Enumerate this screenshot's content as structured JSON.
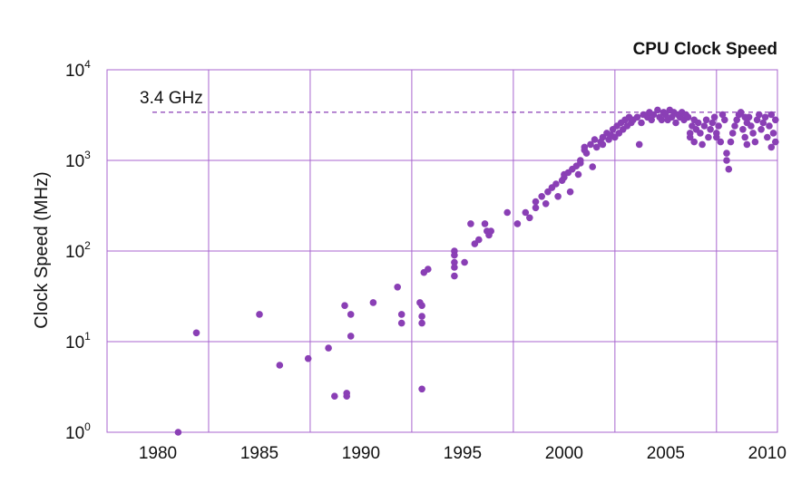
{
  "chart_data": {
    "type": "scatter",
    "title": "CPU Clock Speed",
    "xlabel": "",
    "ylabel": "Clock Speed (MHz)",
    "y_scale": "log",
    "xlim": [
      1977.5,
      2010.5
    ],
    "ylim": [
      1,
      10000
    ],
    "x_ticks": [
      1980,
      1985,
      1990,
      1995,
      2000,
      2005,
      2010
    ],
    "x_tick_labels": [
      "1980",
      "1985",
      "1990",
      "1995",
      "2000",
      "2005",
      "2010"
    ],
    "y_ticks": [
      {
        "value": 1,
        "base": "10",
        "exp": "0"
      },
      {
        "value": 10,
        "base": "10",
        "exp": "1"
      },
      {
        "value": 100,
        "base": "10",
        "exp": "2"
      },
      {
        "value": 1000,
        "base": "10",
        "exp": "3"
      },
      {
        "value": 10000,
        "base": "10",
        "exp": "4"
      }
    ],
    "grid": true,
    "reference_line": {
      "value": 3400,
      "label": "3.4 GHz",
      "style": "dashed"
    },
    "colors": {
      "points": "#8a3fb5",
      "grid": "#a866cf"
    },
    "points": [
      [
        1981.0,
        1.0
      ],
      [
        1981.9,
        12.5
      ],
      [
        1985.0,
        20
      ],
      [
        1986.0,
        5.5
      ],
      [
        1987.4,
        6.5
      ],
      [
        1988.4,
        8.5
      ],
      [
        1988.7,
        2.5
      ],
      [
        1989.2,
        25
      ],
      [
        1989.3,
        2.5
      ],
      [
        1989.3,
        2.7
      ],
      [
        1989.5,
        20
      ],
      [
        1989.5,
        11.5
      ],
      [
        1990.6,
        27
      ],
      [
        1991.8,
        40
      ],
      [
        1992.0,
        20
      ],
      [
        1992.0,
        16
      ],
      [
        1992.9,
        27
      ],
      [
        1993.0,
        25
      ],
      [
        1993.0,
        19
      ],
      [
        1993.0,
        16
      ],
      [
        1993.0,
        3.0
      ],
      [
        1993.1,
        58
      ],
      [
        1993.3,
        63
      ],
      [
        1994.6,
        100
      ],
      [
        1994.6,
        90
      ],
      [
        1994.6,
        75
      ],
      [
        1994.6,
        66
      ],
      [
        1994.6,
        53
      ],
      [
        1995.1,
        75
      ],
      [
        1995.4,
        200
      ],
      [
        1995.6,
        120
      ],
      [
        1995.8,
        133
      ],
      [
        1996.1,
        200
      ],
      [
        1996.2,
        166
      ],
      [
        1996.3,
        150
      ],
      [
        1996.4,
        166
      ],
      [
        1997.2,
        266
      ],
      [
        1997.7,
        200
      ],
      [
        1998.1,
        266
      ],
      [
        1998.3,
        233
      ],
      [
        1998.6,
        300
      ],
      [
        1998.6,
        350
      ],
      [
        1998.9,
        400
      ],
      [
        1999.1,
        333
      ],
      [
        1999.2,
        450
      ],
      [
        1999.4,
        500
      ],
      [
        1999.6,
        550
      ],
      [
        1999.7,
        400
      ],
      [
        1999.9,
        600
      ],
      [
        2000.0,
        700
      ],
      [
        2000.0,
        650
      ],
      [
        2000.2,
        733
      ],
      [
        2000.3,
        450
      ],
      [
        2000.4,
        800
      ],
      [
        2000.6,
        866
      ],
      [
        2000.7,
        700
      ],
      [
        2000.8,
        933
      ],
      [
        2000.8,
        1000
      ],
      [
        2001.0,
        1400
      ],
      [
        2001.0,
        1300
      ],
      [
        2001.1,
        1200
      ],
      [
        2001.3,
        1500
      ],
      [
        2001.4,
        850
      ],
      [
        2001.5,
        1700
      ],
      [
        2001.6,
        1400
      ],
      [
        2001.8,
        1600
      ],
      [
        2001.9,
        1800
      ],
      [
        2001.9,
        1500
      ],
      [
        2002.1,
        2000
      ],
      [
        2002.2,
        1700
      ],
      [
        2002.3,
        1900
      ],
      [
        2002.4,
        2200
      ],
      [
        2002.5,
        1800
      ],
      [
        2002.6,
        2400
      ],
      [
        2002.7,
        2000
      ],
      [
        2002.8,
        2600
      ],
      [
        2002.9,
        2200
      ],
      [
        2003.0,
        2800
      ],
      [
        2003.1,
        2400
      ],
      [
        2003.2,
        3000
      ],
      [
        2003.3,
        2600
      ],
      [
        2003.4,
        2800
      ],
      [
        2003.6,
        3000
      ],
      [
        2003.7,
        1500
      ],
      [
        2003.8,
        2600
      ],
      [
        2003.9,
        3200
      ],
      [
        2004.1,
        3000
      ],
      [
        2004.2,
        3400
      ],
      [
        2004.3,
        2800
      ],
      [
        2004.4,
        3200
      ],
      [
        2004.6,
        3600
      ],
      [
        2004.7,
        3000
      ],
      [
        2004.8,
        2800
      ],
      [
        2004.9,
        3400
      ],
      [
        2005.0,
        3200
      ],
      [
        2005.1,
        2800
      ],
      [
        2005.2,
        3600
      ],
      [
        2005.3,
        3000
      ],
      [
        2005.4,
        3400
      ],
      [
        2005.5,
        2600
      ],
      [
        2005.6,
        3200
      ],
      [
        2005.7,
        3000
      ],
      [
        2005.8,
        3400
      ],
      [
        2005.9,
        2800
      ],
      [
        2006.0,
        3200
      ],
      [
        2006.1,
        3000
      ],
      [
        2006.2,
        2000
      ],
      [
        2006.2,
        1800
      ],
      [
        2006.3,
        2400
      ],
      [
        2006.4,
        1600
      ],
      [
        2006.5,
        2200
      ],
      [
        2006.6,
        2600
      ],
      [
        2006.7,
        2000
      ],
      [
        2006.8,
        1500
      ],
      [
        2006.9,
        2400
      ],
      [
        2007.0,
        2800
      ],
      [
        2007.1,
        1800
      ],
      [
        2007.2,
        2200
      ],
      [
        2007.3,
        2600
      ],
      [
        2007.4,
        3000
      ],
      [
        2007.5,
        2000
      ],
      [
        2007.6,
        2400
      ],
      [
        2007.7,
        1600
      ],
      [
        2007.8,
        3200
      ],
      [
        2007.9,
        2800
      ],
      [
        2008.0,
        1200
      ],
      [
        2008.0,
        1000
      ],
      [
        2008.1,
        800
      ],
      [
        2008.2,
        1600
      ],
      [
        2008.3,
        2000
      ],
      [
        2008.4,
        2400
      ],
      [
        2008.5,
        2800
      ],
      [
        2008.6,
        3200
      ],
      [
        2008.7,
        3400
      ],
      [
        2008.8,
        2200
      ],
      [
        2008.9,
        1800
      ],
      [
        2009.0,
        2600
      ],
      [
        2009.1,
        3000
      ],
      [
        2009.2,
        2400
      ],
      [
        2009.3,
        2000
      ],
      [
        2009.4,
        1600
      ],
      [
        2009.5,
        2800
      ],
      [
        2009.6,
        3200
      ],
      [
        2009.7,
        2200
      ],
      [
        2009.8,
        2600
      ],
      [
        2009.9,
        3000
      ],
      [
        2010.0,
        1800
      ],
      [
        2010.1,
        2400
      ],
      [
        2010.2,
        3200
      ],
      [
        2010.3,
        2000
      ],
      [
        2010.4,
        1600
      ],
      [
        2010.4,
        2800
      ],
      [
        2007.5,
        1800
      ],
      [
        2009.0,
        1500
      ],
      [
        2006.4,
        2800
      ],
      [
        2008.9,
        3000
      ],
      [
        2010.2,
        1400
      ]
    ]
  }
}
